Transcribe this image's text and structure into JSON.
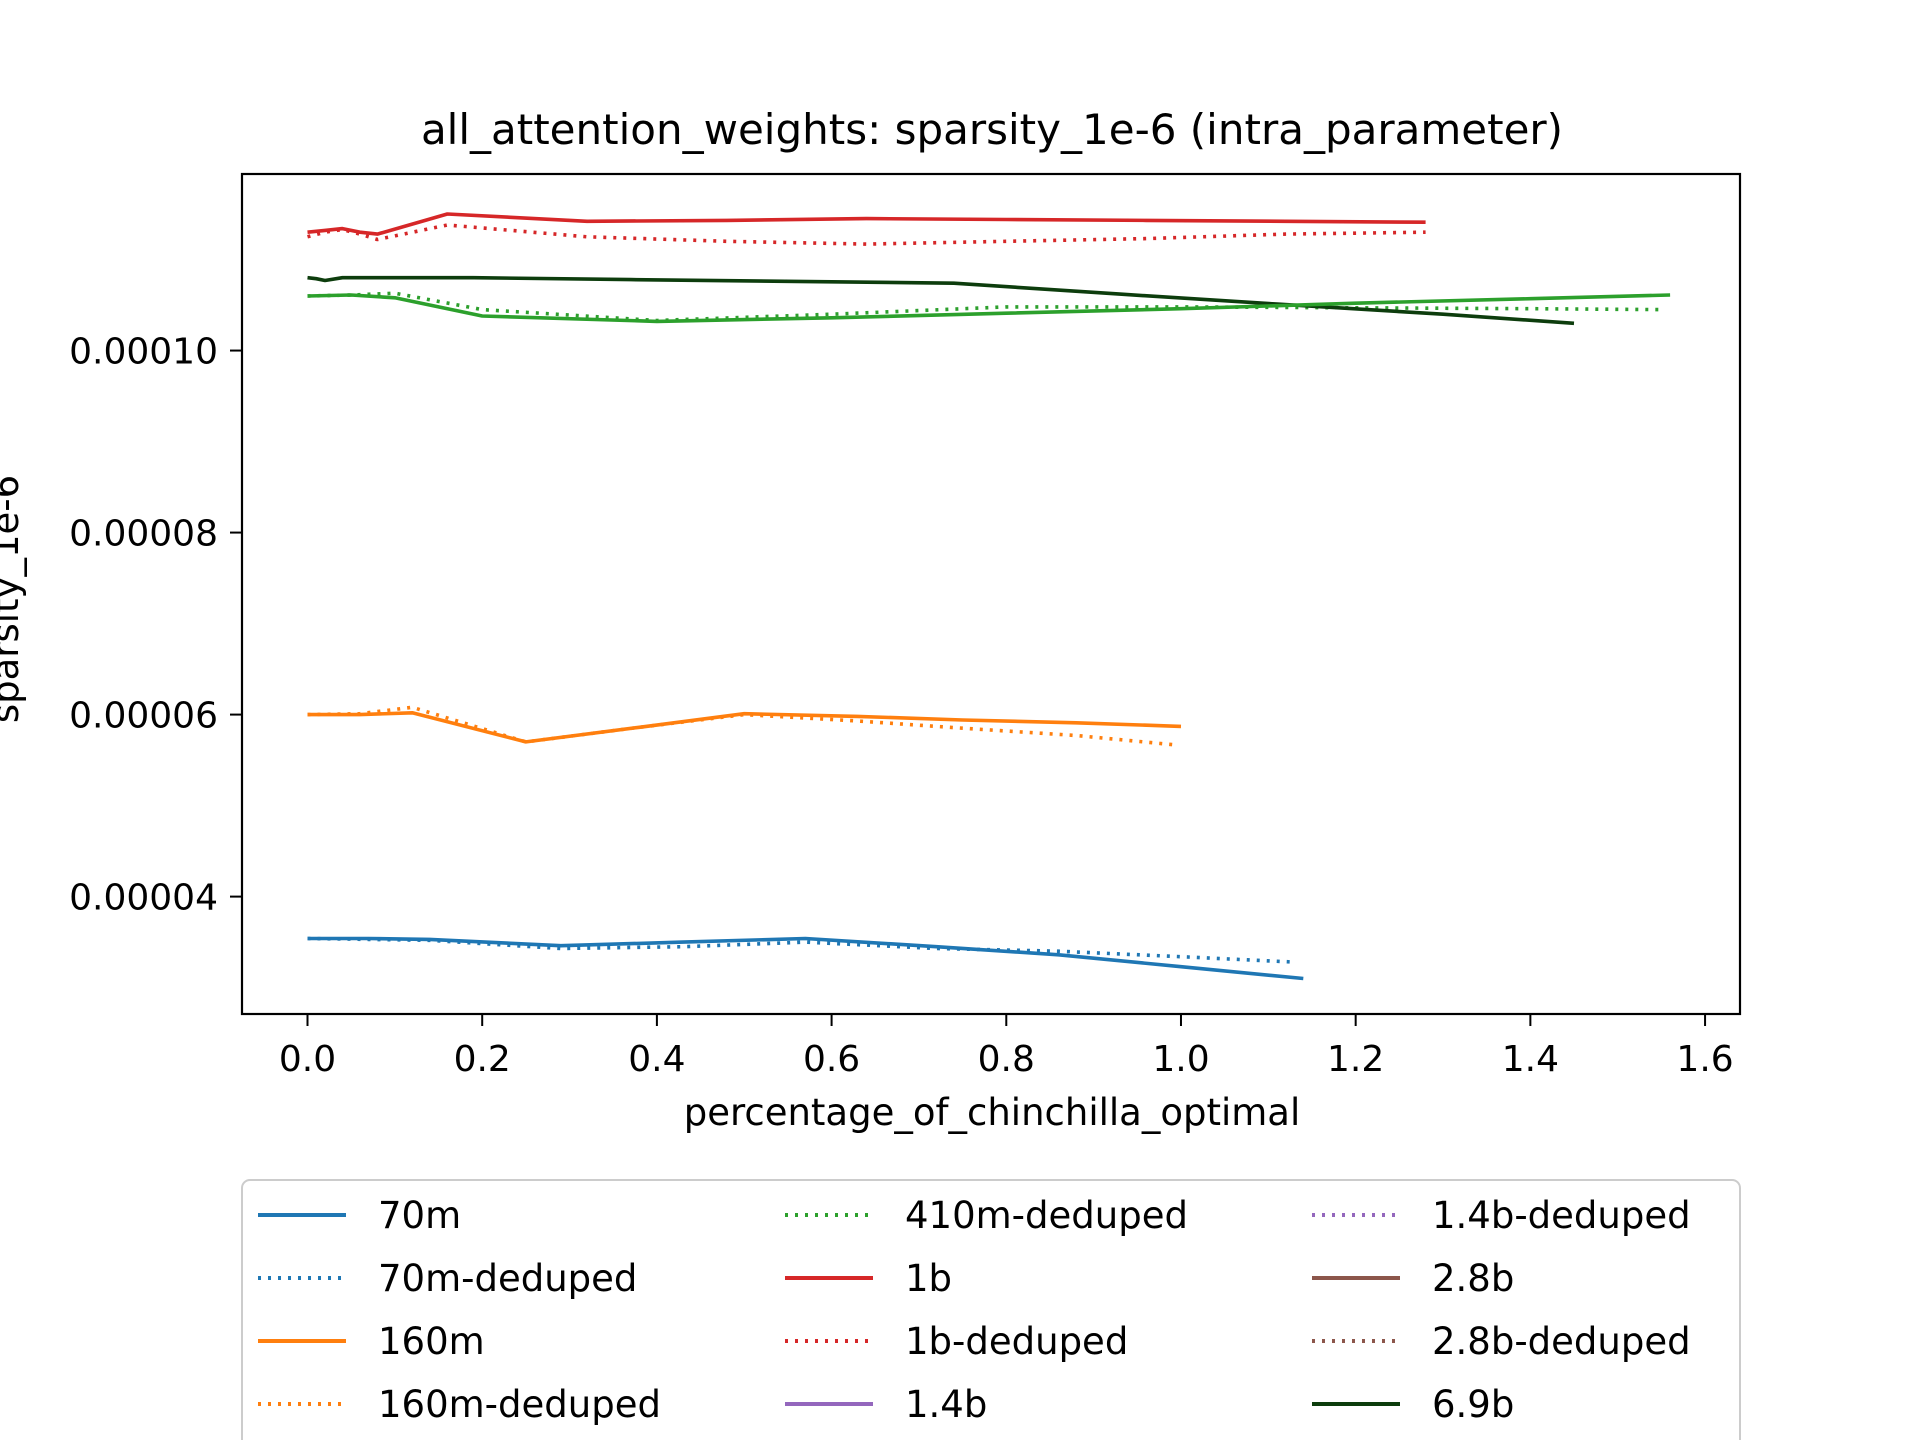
{
  "chart_data": {
    "type": "line",
    "title": "all_attention_weights: sparsity_1e-6 (intra_parameter)",
    "xlabel": "percentage_of_chinchilla_optimal",
    "ylabel": "sparsity_1e-6",
    "xlim": [
      -0.075,
      1.64
    ],
    "ylim": [
      2.71e-05,
      0.0001194
    ],
    "xticks": [
      0.0,
      0.2,
      0.4,
      0.6,
      0.8,
      1.0,
      1.2,
      1.4,
      1.6
    ],
    "xtick_labels": [
      "0.0",
      "0.2",
      "0.4",
      "0.6",
      "0.8",
      "1.0",
      "1.2",
      "1.4",
      "1.6"
    ],
    "yticks": [
      4e-05,
      6e-05,
      8e-05,
      0.0001
    ],
    "ytick_labels": [
      "0.00004",
      "0.00006",
      "0.00008",
      "0.00010"
    ],
    "grid": false,
    "legend_position": "below",
    "series": [
      {
        "name": "70m",
        "color": "#1f77b4",
        "style": "solid",
        "x": [
          0.0,
          0.07,
          0.14,
          0.29,
          0.43,
          0.57,
          0.72,
          0.86,
          1.0,
          1.14
        ],
        "y": [
          3.54e-05,
          3.54e-05,
          3.53e-05,
          3.46e-05,
          3.5e-05,
          3.54e-05,
          3.45e-05,
          3.36e-05,
          3.23e-05,
          3.1e-05
        ]
      },
      {
        "name": "70m-deduped",
        "color": "#1f77b4",
        "style": "dotted",
        "x": [
          0.0,
          0.07,
          0.14,
          0.29,
          0.43,
          0.57,
          0.72,
          0.86,
          1.0,
          1.13
        ],
        "y": [
          3.54e-05,
          3.53e-05,
          3.52e-05,
          3.43e-05,
          3.45e-05,
          3.5e-05,
          3.43e-05,
          3.4e-05,
          3.34e-05,
          3.28e-05
        ]
      },
      {
        "name": "160m",
        "color": "#ff7f0e",
        "style": "solid",
        "x": [
          0.0,
          0.06,
          0.12,
          0.25,
          0.38,
          0.5,
          0.63,
          0.75,
          0.88,
          1.0
        ],
        "y": [
          6e-05,
          6e-05,
          6.02e-05,
          5.7e-05,
          5.86e-05,
          6.01e-05,
          5.98e-05,
          5.94e-05,
          5.91e-05,
          5.87e-05
        ]
      },
      {
        "name": "160m-deduped",
        "color": "#ff7f0e",
        "style": "dotted",
        "x": [
          0.0,
          0.06,
          0.12,
          0.25,
          0.38,
          0.5,
          0.63,
          0.75,
          0.88,
          0.99
        ],
        "y": [
          6e-05,
          6.01e-05,
          6.08e-05,
          5.7e-05,
          5.86e-05,
          6e-05,
          5.93e-05,
          5.85e-05,
          5.77e-05,
          5.67e-05
        ]
      },
      {
        "name": "410m-deduped",
        "color": "#2ca02c",
        "style": "dotted",
        "x": [
          0.0,
          0.05,
          0.1,
          0.2,
          0.4,
          0.6,
          0.8,
          1.0,
          1.2,
          1.4,
          1.55
        ],
        "y": [
          0.000106,
          0.0001061,
          0.0001063,
          0.0001045,
          0.0001033,
          0.000104,
          0.0001048,
          0.0001048,
          0.0001047,
          0.0001046,
          0.0001045
        ]
      },
      {
        "name": "1b",
        "color": "#d62728",
        "style": "solid",
        "x": [
          0.0,
          0.02,
          0.04,
          0.06,
          0.08,
          0.16,
          0.32,
          0.48,
          0.64,
          0.8,
          0.96,
          1.12,
          1.28
        ],
        "y": [
          0.000113,
          0.0001132,
          0.0001134,
          0.000113,
          0.0001128,
          0.000115,
          0.0001142,
          0.0001143,
          0.0001145,
          0.0001144,
          0.0001143,
          0.0001142,
          0.0001141
        ]
      },
      {
        "name": "1b-deduped",
        "color": "#d62728",
        "style": "dotted",
        "x": [
          0.0,
          0.02,
          0.04,
          0.06,
          0.08,
          0.16,
          0.32,
          0.48,
          0.64,
          0.8,
          0.96,
          1.12,
          1.28
        ],
        "y": [
          0.0001125,
          0.000113,
          0.0001133,
          0.0001128,
          0.0001122,
          0.0001138,
          0.0001125,
          0.000112,
          0.0001117,
          0.000112,
          0.0001123,
          0.0001128,
          0.000113
        ]
      },
      {
        "name": "1.4b",
        "color": "#9467bd",
        "style": "solid",
        "x": [],
        "y": []
      },
      {
        "name": "1.4b-deduped",
        "color": "#9467bd",
        "style": "dotted",
        "x": [],
        "y": []
      },
      {
        "name": "2.8b",
        "color": "#8c564b",
        "style": "solid",
        "x": [],
        "y": []
      },
      {
        "name": "2.8b-deduped",
        "color": "#8c564b",
        "style": "dotted",
        "x": [],
        "y": []
      },
      {
        "name": "6.9b",
        "color": "#0d3d0d",
        "style": "solid",
        "x": [
          0.0,
          0.01,
          0.02,
          0.04,
          0.19,
          0.37,
          0.56,
          0.74,
          0.93,
          1.11,
          1.3,
          1.45
        ],
        "y": [
          0.000108,
          0.0001079,
          0.0001077,
          0.000108,
          0.000108,
          0.0001078,
          0.0001076,
          0.0001074,
          0.0001062,
          0.0001051,
          0.000104,
          0.000103
        ]
      },
      {
        "name": "410m",
        "color": "#2ca02c",
        "style": "solid",
        "legend": false,
        "x": [
          0.0,
          0.05,
          0.1,
          0.2,
          0.4,
          0.6,
          0.8,
          1.0,
          1.2,
          1.4,
          1.56
        ],
        "y": [
          0.000106,
          0.0001061,
          0.0001058,
          0.0001038,
          0.0001032,
          0.0001036,
          0.0001041,
          0.0001046,
          0.0001052,
          0.0001057,
          0.0001061
        ]
      }
    ]
  }
}
